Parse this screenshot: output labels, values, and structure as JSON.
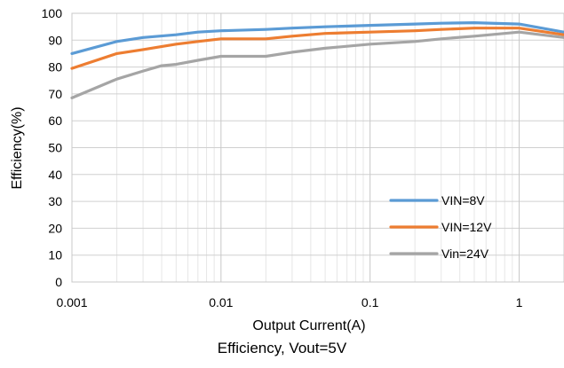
{
  "chart_data": {
    "type": "line",
    "xlabel": "Output Current(A)",
    "ylabel": "Efficiency(%)",
    "x_scale": "log",
    "xlim": [
      0.001,
      2
    ],
    "ylim": [
      0,
      100
    ],
    "x_ticks": [
      0.001,
      0.01,
      0.1,
      1
    ],
    "x_tick_labels": [
      "0.001",
      "0.01",
      "0.1",
      "1"
    ],
    "y_ticks": [
      0,
      10,
      20,
      30,
      40,
      50,
      60,
      70,
      80,
      90,
      100
    ],
    "grid": true,
    "legend_position": "lower-right",
    "series": [
      {
        "name": "VIN=8V",
        "color": "#5b9bd5",
        "x": [
          0.001,
          0.002,
          0.003,
          0.005,
          0.007,
          0.01,
          0.02,
          0.03,
          0.05,
          0.1,
          0.2,
          0.3,
          0.5,
          1,
          2
        ],
        "y": [
          85,
          89.5,
          91,
          92,
          93,
          93.5,
          94,
          94.5,
          95,
          95.5,
          96,
          96.3,
          96.5,
          96,
          93
        ]
      },
      {
        "name": "VIN=12V",
        "color": "#ed7d31",
        "x": [
          0.001,
          0.002,
          0.003,
          0.005,
          0.007,
          0.01,
          0.02,
          0.03,
          0.05,
          0.1,
          0.2,
          0.3,
          0.5,
          1,
          2
        ],
        "y": [
          79.5,
          85,
          86.5,
          88.5,
          89.5,
          90.5,
          90.5,
          91.5,
          92.5,
          93,
          93.5,
          94,
          94.5,
          94.5,
          92
        ]
      },
      {
        "name": "Vin=24V",
        "color": "#a5a5a5",
        "x": [
          0.001,
          0.002,
          0.003,
          0.004,
          0.005,
          0.007,
          0.01,
          0.02,
          0.03,
          0.05,
          0.1,
          0.2,
          0.3,
          0.5,
          1,
          2
        ],
        "y": [
          68.5,
          75.5,
          78.5,
          80.5,
          81,
          82.5,
          84,
          84,
          85.5,
          87,
          88.5,
          89.5,
          90.5,
          91.5,
          93,
          91
        ]
      }
    ]
  },
  "caption": "Efficiency, Vout=5V"
}
